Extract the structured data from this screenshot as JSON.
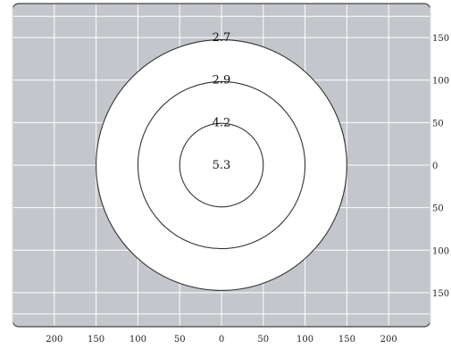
{
  "chart_data": {
    "type": "contour",
    "title": "",
    "xlabel": "",
    "ylabel": "",
    "xlim": [
      -250,
      250
    ],
    "ylim": [
      -190,
      190
    ],
    "grid": true,
    "colors": {
      "background": "#c3c6cb",
      "grid": "#ffffff",
      "ring_fill": "#ffffff",
      "ring_stroke": "#333333"
    },
    "x_ticks": [
      {
        "value": -200,
        "label": "200"
      },
      {
        "value": -150,
        "label": "150"
      },
      {
        "value": -100,
        "label": "100"
      },
      {
        "value": -50,
        "label": "50"
      },
      {
        "value": 0,
        "label": "0"
      },
      {
        "value": 50,
        "label": "50"
      },
      {
        "value": 100,
        "label": "100"
      },
      {
        "value": 150,
        "label": "150"
      },
      {
        "value": 200,
        "label": "200"
      }
    ],
    "y_ticks": [
      {
        "value": 150,
        "label": "150"
      },
      {
        "value": 100,
        "label": "100"
      },
      {
        "value": 50,
        "label": "50"
      },
      {
        "value": 0,
        "label": "0"
      },
      {
        "value": -50,
        "label": "50"
      },
      {
        "value": -100,
        "label": "100"
      },
      {
        "value": -150,
        "label": "150"
      }
    ],
    "rings": [
      {
        "radius": 150,
        "label": "2.7"
      },
      {
        "radius": 100,
        "label": "2.9"
      },
      {
        "radius": 50,
        "label": "4.2"
      }
    ],
    "center_label": "5.3"
  }
}
